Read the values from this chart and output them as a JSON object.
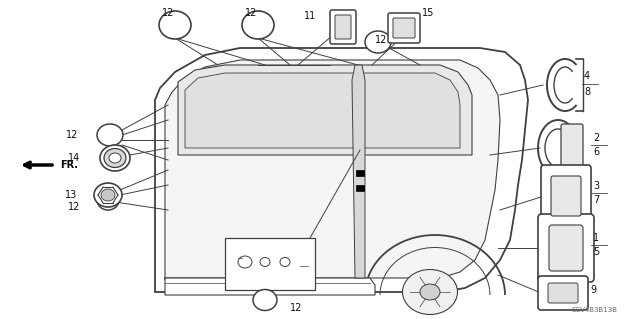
{
  "bg_color": "#ffffff",
  "fig_width": 6.4,
  "fig_height": 3.19,
  "line_color": "#404040",
  "diagram_code": "SCV4B3B13B"
}
